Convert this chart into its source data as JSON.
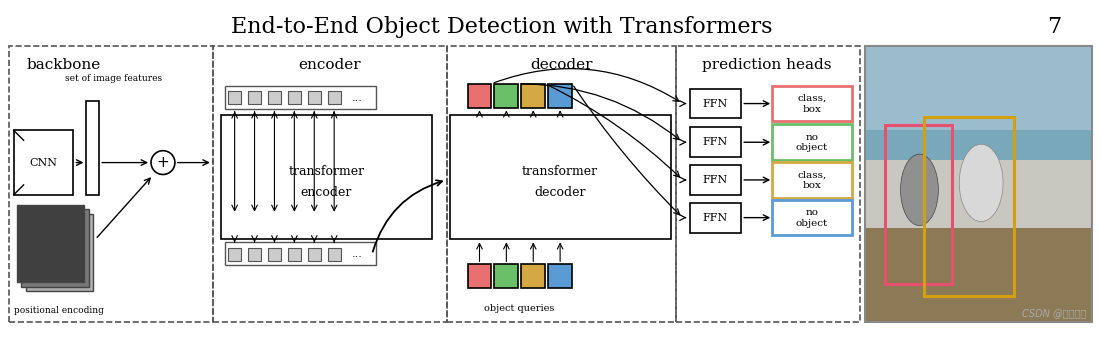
{
  "title": "End-to-End Object Detection with Transformers",
  "page_num": "7",
  "title_fontsize": 16,
  "background_color": "#ffffff",
  "section_labels": [
    "backbone",
    "encoder",
    "decoder",
    "prediction heads"
  ],
  "output_labels": [
    [
      "class,",
      "box"
    ],
    [
      "no",
      "object"
    ],
    [
      "class,",
      "box"
    ],
    [
      "no",
      "object"
    ]
  ],
  "output_colors": [
    "#e87070",
    "#6abf69",
    "#d4a843",
    "#5b9bd5"
  ],
  "object_query_colors": [
    "#e87070",
    "#6abf69",
    "#d4a843",
    "#5b9bd5"
  ],
  "decoder_output_colors": [
    "#e87070",
    "#6abf69",
    "#d4a843",
    "#5b9bd5"
  ],
  "watermark": "CSDN @黄阳老师"
}
